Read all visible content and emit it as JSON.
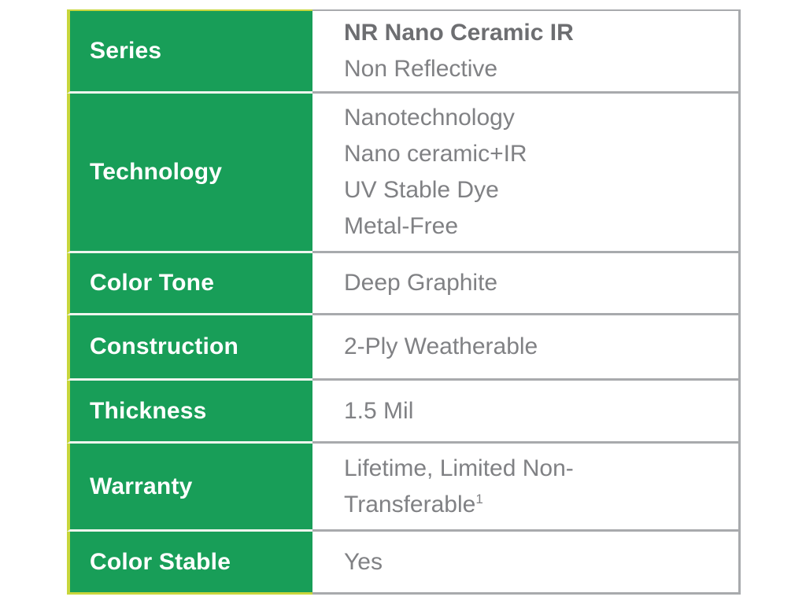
{
  "colors": {
    "green": "#189e58",
    "lime": "#c8d63c",
    "border_gray": "#a8aaad",
    "text_gray": "#808184",
    "text_dark_gray": "#6d6e71",
    "label_text": "#ffffff",
    "green_divider": "#eef5ee",
    "page_bg": "#ffffff"
  },
  "table": {
    "rows": [
      {
        "label": "Series",
        "value_lines": [
          "NR Nano Ceramic IR",
          "Non Reflective"
        ]
      },
      {
        "label": "Technology",
        "value_lines": [
          "Nanotechnology",
          "Nano ceramic+IR",
          "UV Stable Dye",
          "Metal-Free"
        ]
      },
      {
        "label": "Color Tone",
        "value_lines": [
          "Deep Graphite"
        ]
      },
      {
        "label": "Construction",
        "value_lines": [
          "2-Ply Weatherable"
        ]
      },
      {
        "label": "Thickness",
        "value_lines": [
          "1.5 Mil"
        ]
      },
      {
        "label": "Warranty",
        "value_lines": [
          "Lifetime, Limited Non-",
          "Transferable"
        ],
        "superscript": "1"
      },
      {
        "label": "Color Stable",
        "value_lines": [
          "Yes"
        ]
      }
    ]
  }
}
